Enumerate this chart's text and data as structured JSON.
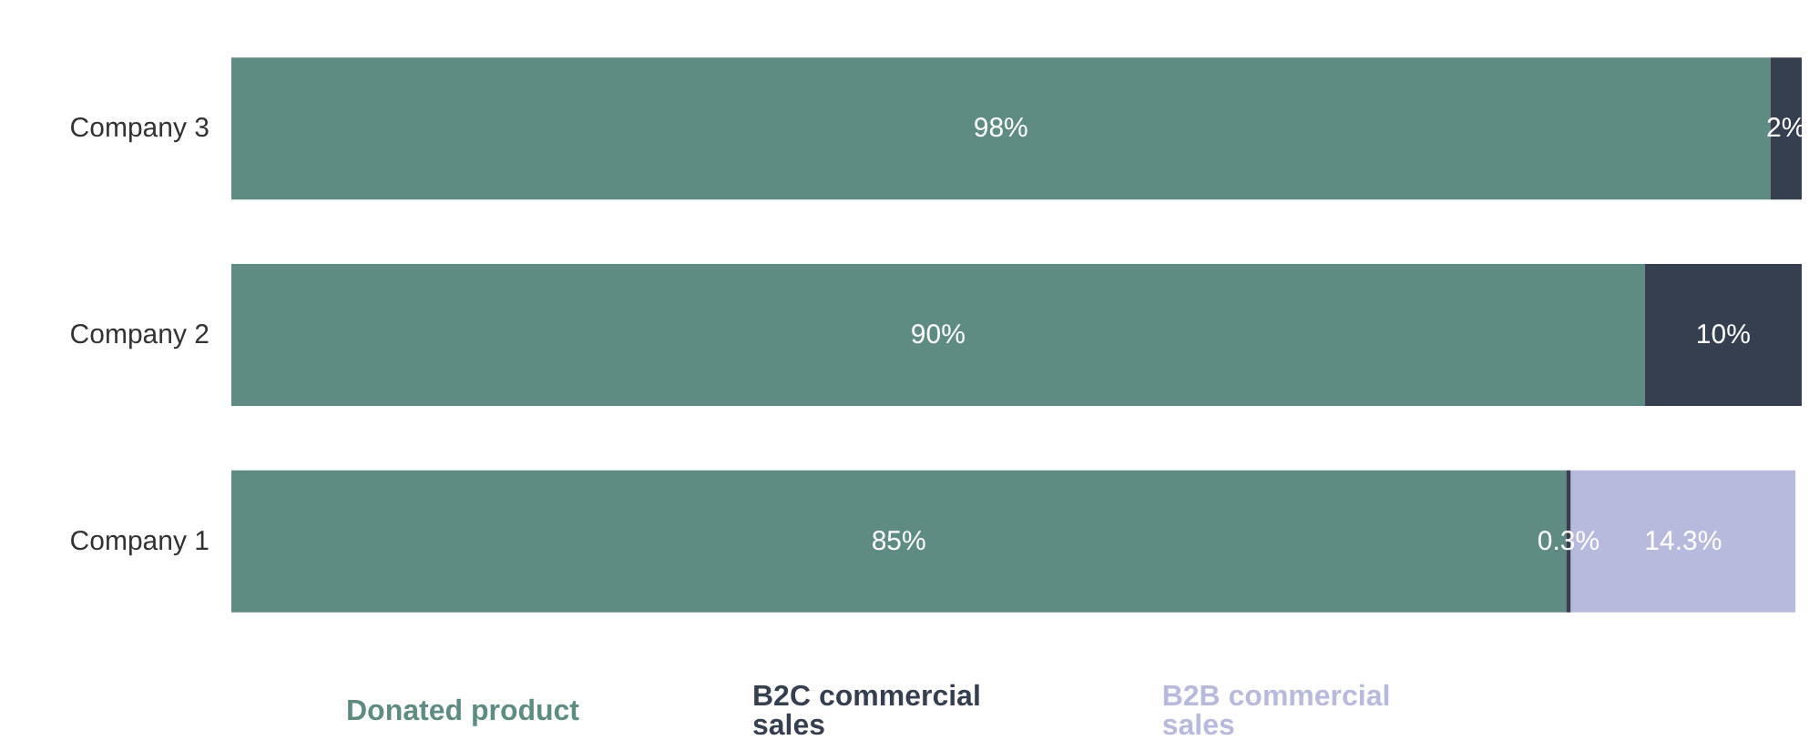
{
  "chart_data": {
    "type": "bar",
    "orientation": "horizontal",
    "stacked": true,
    "categories": [
      "Company 3",
      "Company 2",
      "Company 1"
    ],
    "series": [
      {
        "name": "Donated product",
        "color": "#5e8b82",
        "values": [
          98,
          90,
          85
        ],
        "value_labels": [
          "98%",
          "90%",
          "85%"
        ]
      },
      {
        "name": "B2C commercial sales",
        "color": "#353f50",
        "values": [
          2,
          10,
          0.3
        ],
        "value_labels": [
          "2%",
          "10%",
          "0.3%"
        ]
      },
      {
        "name": "B2B commercial sales",
        "color": "#b8badd",
        "values": [
          null,
          null,
          14.3
        ],
        "value_labels": [
          null,
          null,
          "14.3%"
        ]
      }
    ],
    "legend": "bottom"
  }
}
